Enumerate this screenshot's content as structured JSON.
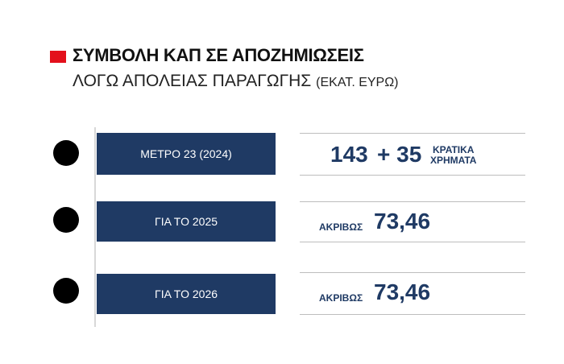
{
  "header": {
    "title": "ΣΥΜΒΟΛΗ ΚΑΠ ΣΕ ΑΠΟΖΗΜΙΩΣΕΙΣ",
    "subtitle": "ΛΟΓΩ ΑΠΟΛΕΙΑΣ ΠΑΡΑΓΩΓΗΣ",
    "unit": "(ΕΚΑΤ. ΕΥΡΩ)"
  },
  "rows": [
    {
      "label": "ΜΕΤΡΟ 23 (2024)",
      "value": "143",
      "extra": "+ 35",
      "note": [
        "ΚΡΑΤΙΚΑ",
        "ΧΡΗΜΑΤΑ"
      ]
    },
    {
      "label": "ΓΙΑ ΤΟ 2025",
      "prefix": "ΑΚΡΙΒΩΣ",
      "value": "73,46"
    },
    {
      "label": "ΓΙΑ ΤΟ 2026",
      "prefix": "ΑΚΡΙΒΩΣ",
      "value": "73,46"
    }
  ]
}
